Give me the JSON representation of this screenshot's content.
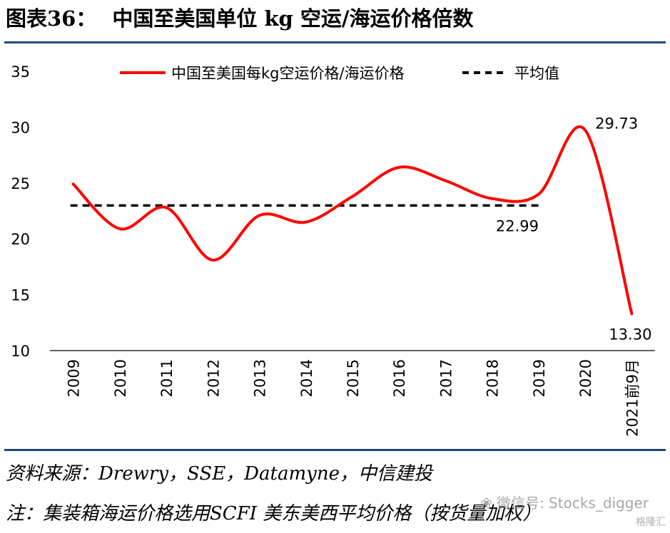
{
  "header": {
    "figure_number": "图表36：",
    "title": "中国至美国单位 kg 空运/海运价格倍数"
  },
  "chart_data": {
    "type": "line",
    "categories": [
      "2009",
      "2010",
      "2011",
      "2012",
      "2013",
      "2014",
      "2015",
      "2016",
      "2017",
      "2018",
      "2019",
      "2020",
      "2021前9月"
    ],
    "series": [
      {
        "name": "中国至美国每kg空运价格/海运价格",
        "color": "#ff0000",
        "style": "solid",
        "values": [
          24.9,
          20.9,
          22.8,
          18.1,
          22.1,
          21.5,
          23.8,
          26.4,
          25.2,
          23.6,
          24.0,
          29.73,
          13.3
        ]
      },
      {
        "name": "平均值",
        "color": "#000000",
        "style": "dashed",
        "value": 22.99,
        "range_end_category": "2019"
      }
    ],
    "data_labels": [
      {
        "category": "2019",
        "text": "22.99"
      },
      {
        "category": "2020",
        "text": "29.73"
      },
      {
        "category": "2021前9月",
        "text": "13.30"
      }
    ],
    "y_ticks": [
      "35",
      "30",
      "25",
      "20",
      "15",
      "10"
    ],
    "ylim": [
      10,
      35
    ],
    "xlabel": "",
    "ylabel": "",
    "legend_position": "top"
  },
  "footer": {
    "source": "资料来源：Drewry，SSE，Datamyne，中信建投",
    "note": "注：集装箱海运价格选用SCFI 美东美西平均价格（按货量加权）"
  },
  "watermark": {
    "account": "微信号: Stocks_digger",
    "brand": "格隆汇"
  }
}
